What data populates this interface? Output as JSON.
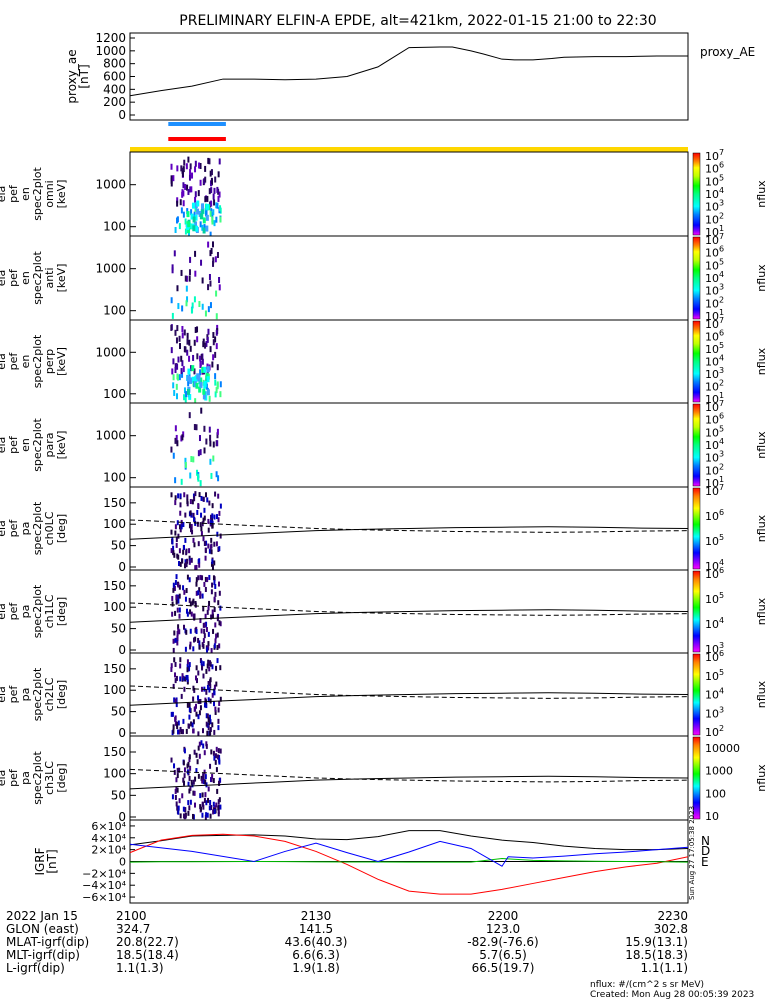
{
  "title": "PRELIMINARY ELFIN-A EPDE, alt=421km, 2022-01-15 21:00 to 22:30",
  "chart_data": [
    {
      "id": "proxy_ae",
      "type": "line",
      "ylabel": [
        "proxy_ae",
        "[nT]"
      ],
      "ylim": [
        0,
        1200
      ],
      "yticks": [
        {
          "v": 0,
          "label": "0"
        },
        {
          "v": 200,
          "label": "200"
        },
        {
          "v": 400,
          "label": "400"
        },
        {
          "v": 600,
          "label": "600"
        },
        {
          "v": 800,
          "label": "800"
        },
        {
          "v": 1000,
          "label": "1000"
        },
        {
          "v": 1200,
          "label": "1200"
        }
      ],
      "legend": "proxy_AE",
      "x_minutes": [
        0,
        5,
        10,
        15,
        20,
        25,
        30,
        35,
        40,
        45,
        50,
        52,
        55,
        57,
        60,
        62,
        65,
        68,
        70,
        75,
        80,
        85,
        90
      ],
      "values": [
        300,
        380,
        450,
        560,
        560,
        550,
        560,
        600,
        750,
        1050,
        1060,
        1060,
        1000,
        950,
        870,
        860,
        860,
        880,
        900,
        910,
        910,
        920,
        920
      ]
    },
    {
      "id": "omni",
      "type": "heatmap",
      "ylabel": [
        "ela",
        "pef",
        "en",
        "spec2plot",
        "omni",
        "[keV]"
      ],
      "scale": "log",
      "yticks": [
        {
          "v": 100,
          "label": "100"
        },
        {
          "v": 1000,
          "label": "1000"
        }
      ],
      "colorbar": {
        "label": "nflux",
        "exponents": [
          "1",
          "2",
          "3",
          "4",
          "5",
          "6",
          "7"
        ]
      }
    },
    {
      "id": "anti",
      "type": "heatmap",
      "ylabel": [
        "ela",
        "pef",
        "en",
        "spec2plot",
        "anti",
        "[keV]"
      ],
      "scale": "log",
      "yticks": [
        {
          "v": 100,
          "label": "100"
        },
        {
          "v": 1000,
          "label": "1000"
        }
      ],
      "colorbar": {
        "label": "nflux",
        "exponents": [
          "1",
          "2",
          "3",
          "4",
          "5",
          "6",
          "7"
        ]
      }
    },
    {
      "id": "perp",
      "type": "heatmap",
      "ylabel": [
        "ela",
        "pef",
        "en",
        "spec2plot",
        "perp",
        "[keV]"
      ],
      "scale": "log",
      "yticks": [
        {
          "v": 100,
          "label": "100"
        },
        {
          "v": 1000,
          "label": "1000"
        }
      ],
      "colorbar": {
        "label": "nflux",
        "exponents": [
          "1",
          "2",
          "3",
          "4",
          "5",
          "6",
          "7"
        ]
      }
    },
    {
      "id": "para",
      "type": "heatmap",
      "ylabel": [
        "ela",
        "pef",
        "en",
        "spec2plot",
        "para",
        "[keV]"
      ],
      "scale": "log",
      "yticks": [
        {
          "v": 100,
          "label": "100"
        },
        {
          "v": 1000,
          "label": "1000"
        }
      ],
      "colorbar": {
        "label": "nflux",
        "exponents": [
          "1",
          "2",
          "3",
          "4",
          "5",
          "6",
          "7"
        ]
      }
    },
    {
      "id": "ch0LC",
      "type": "heatmap",
      "ylabel": [
        "ela",
        "pef",
        "pa",
        "spec2plot",
        "ch0LC",
        "[deg]"
      ],
      "ylim": [
        0,
        180
      ],
      "yticks": [
        {
          "v": 0,
          "label": "0"
        },
        {
          "v": 50,
          "label": "50"
        },
        {
          "v": 100,
          "label": "100"
        },
        {
          "v": 150,
          "label": "150"
        }
      ],
      "colorbar": {
        "label": "nflux",
        "exponents": [
          "4",
          "5",
          "6",
          "7"
        ]
      }
    },
    {
      "id": "ch1LC",
      "type": "heatmap",
      "ylabel": [
        "ela",
        "pef",
        "pa",
        "spec2plot",
        "ch1LC",
        "[deg]"
      ],
      "ylim": [
        0,
        180
      ],
      "yticks": [
        {
          "v": 0,
          "label": "0"
        },
        {
          "v": 50,
          "label": "50"
        },
        {
          "v": 100,
          "label": "100"
        },
        {
          "v": 150,
          "label": "150"
        }
      ],
      "colorbar": {
        "label": "nflux",
        "exponents": [
          "3",
          "4",
          "5",
          "6"
        ]
      }
    },
    {
      "id": "ch2LC",
      "type": "heatmap",
      "ylabel": [
        "ela",
        "pef",
        "pa",
        "spec2plot",
        "ch2LC",
        "[deg]"
      ],
      "ylim": [
        0,
        180
      ],
      "yticks": [
        {
          "v": 0,
          "label": "0"
        },
        {
          "v": 50,
          "label": "50"
        },
        {
          "v": 100,
          "label": "100"
        },
        {
          "v": 150,
          "label": "150"
        }
      ],
      "colorbar": {
        "label": "nflux",
        "exponents": [
          "2",
          "3",
          "4",
          "5",
          "6"
        ]
      }
    },
    {
      "id": "ch3LC",
      "type": "heatmap",
      "ylabel": [
        "ela",
        "pef",
        "pa",
        "spec2plot",
        "ch3LC",
        "[deg]"
      ],
      "ylim": [
        0,
        180
      ],
      "yticks": [
        {
          "v": 0,
          "label": "0"
        },
        {
          "v": 50,
          "label": "50"
        },
        {
          "v": 100,
          "label": "100"
        },
        {
          "v": 150,
          "label": "150"
        }
      ],
      "colorbar": {
        "label": "nflux",
        "ticks": [
          "10000",
          "1000",
          "100",
          "10"
        ]
      }
    },
    {
      "id": "igrf",
      "type": "line",
      "ylabel": [
        "IGRF",
        "[nT]"
      ],
      "ylim": [
        -70000,
        70000
      ],
      "yticks": [
        {
          "v": 60000,
          "label": "6×10⁴"
        },
        {
          "v": 40000,
          "label": "4×10⁴"
        },
        {
          "v": 20000,
          "label": "2×10⁴"
        },
        {
          "v": 0,
          "label": "0"
        },
        {
          "v": -20000,
          "label": "−2×10⁴"
        },
        {
          "v": -40000,
          "label": "−4×10⁴"
        },
        {
          "v": -60000,
          "label": "−6×10⁴"
        }
      ],
      "x_minutes": [
        0,
        5,
        10,
        15,
        20,
        25,
        30,
        35,
        40,
        45,
        50,
        55,
        60,
        65,
        70,
        75,
        80,
        85,
        90
      ],
      "series": [
        {
          "name": "N",
          "color": "#000000",
          "values": [
            28000,
            35000,
            43000,
            44000,
            45000,
            43000,
            38000,
            37000,
            42000,
            52000,
            52000,
            43000,
            36000,
            32000,
            26000,
            22000,
            20000,
            20000,
            22000
          ]
        },
        {
          "name": "D",
          "color": "#ff0000",
          "values": [
            15000,
            36000,
            44000,
            46000,
            43000,
            34000,
            17000,
            -5000,
            -30000,
            -50000,
            -55000,
            -55000,
            -47000,
            -37000,
            -27000,
            -17000,
            -9000,
            -3000,
            8000
          ]
        },
        {
          "name": "E",
          "color": "#00c000",
          "values": [
            -1000,
            -500,
            -500,
            -200,
            -100,
            -300,
            -600,
            -800,
            -900,
            -1000,
            -1000,
            -1000,
            5000,
            2000,
            1000,
            500,
            0,
            -500,
            -1000
          ]
        }
      ],
      "blue_series": {
        "name": "blue",
        "color": "#0000ff",
        "x_minutes": [
          0,
          10,
          20,
          25,
          30,
          35,
          40,
          45,
          50,
          55,
          60,
          61,
          65,
          70,
          75,
          80,
          85,
          90
        ],
        "values": [
          29000,
          17000,
          0,
          17000,
          31000,
          15000,
          0,
          16000,
          34000,
          22000,
          -8000,
          8000,
          6000,
          9000,
          13000,
          16000,
          20000,
          24000
        ]
      }
    }
  ],
  "orbit_bars": [
    {
      "color": "#1e90ff"
    },
    {
      "color": "#ff0000"
    }
  ],
  "yellow_band_color": "#ffd700",
  "colorbar_label": "nflux",
  "side_timestamp": "Sun Aug 27 17:05:38 2023",
  "bottom_table": {
    "rows": [
      {
        "label": "2022 Jan 15",
        "values": [
          "2100",
          "2130",
          "2200",
          "2230"
        ]
      },
      {
        "label": "GLON (east)",
        "values": [
          "324.7",
          "141.5",
          "123.0",
          "302.8"
        ]
      },
      {
        "label": "MLAT-igrf(dip)",
        "values": [
          "20.8(22.7)",
          "43.6(40.3)",
          "-82.9(-76.6)",
          "15.9(13.1)"
        ]
      },
      {
        "label": "MLT-igrf(dip)",
        "values": [
          "18.5(18.4)",
          "6.6(6.3)",
          "5.7(6.5)",
          "18.5(18.3)"
        ]
      },
      {
        "label": "L-igrf(dip)",
        "values": [
          "1.1(1.3)",
          "1.9(1.8)",
          "66.5(19.7)",
          "1.1(1.1)"
        ]
      }
    ]
  },
  "footer_units": "nflux: #/(cm^2 s sr MeV)",
  "footer_created": "Created: Mon Aug 28 00:05:39 2023"
}
